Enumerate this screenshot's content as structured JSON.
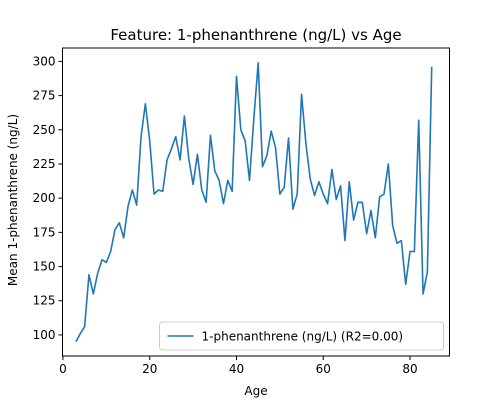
{
  "chart_data": {
    "type": "line",
    "title": "Feature: 1-phenanthrene (ng/L) vs Age",
    "xlabel": "Age",
    "ylabel": "Mean 1-phenanthrene (ng/L)",
    "xlim": [
      -0.1,
      89.1
    ],
    "ylim": [
      84.6,
      309.8
    ],
    "x_ticks": [
      0,
      20,
      40,
      60,
      80
    ],
    "y_ticks": [
      100,
      125,
      150,
      175,
      200,
      225,
      250,
      275,
      300
    ],
    "grid": false,
    "legend_position": "lower-right",
    "series": [
      {
        "name": "1-phenanthrene (ng/L) (R2=0.00)",
        "color": "#1f77b4",
        "x": [
          3,
          4,
          5,
          6,
          7,
          8,
          9,
          10,
          11,
          12,
          13,
          14,
          15,
          16,
          17,
          18,
          19,
          20,
          21,
          22,
          23,
          24,
          25,
          26,
          27,
          28,
          29,
          30,
          31,
          32,
          33,
          34,
          35,
          36,
          37,
          38,
          39,
          40,
          41,
          42,
          43,
          44,
          45,
          46,
          47,
          48,
          49,
          50,
          51,
          52,
          53,
          54,
          55,
          56,
          57,
          58,
          59,
          60,
          61,
          62,
          63,
          64,
          65,
          66,
          67,
          68,
          69,
          70,
          71,
          72,
          73,
          74,
          75,
          76,
          77,
          78,
          79,
          80,
          81,
          82,
          83,
          84,
          85
        ],
        "values": [
          95,
          101,
          106,
          144,
          130,
          145,
          155,
          153,
          161,
          177,
          182,
          171,
          194,
          206,
          195,
          245,
          269,
          242,
          203,
          206,
          205,
          228,
          236,
          245,
          228,
          260,
          229,
          210,
          232,
          206,
          197,
          246,
          220,
          213,
          196,
          213,
          205,
          289,
          250,
          242,
          213,
          258,
          299,
          223,
          231,
          249,
          237,
          203,
          208,
          244,
          192,
          203,
          276,
          240,
          214,
          202,
          212,
          203,
          196,
          221,
          199,
          209,
          169,
          212,
          184,
          197,
          197,
          174,
          191,
          171,
          201,
          203,
          225,
          180,
          167,
          169,
          137,
          161,
          161,
          257,
          130,
          146,
          296
        ]
      }
    ]
  }
}
